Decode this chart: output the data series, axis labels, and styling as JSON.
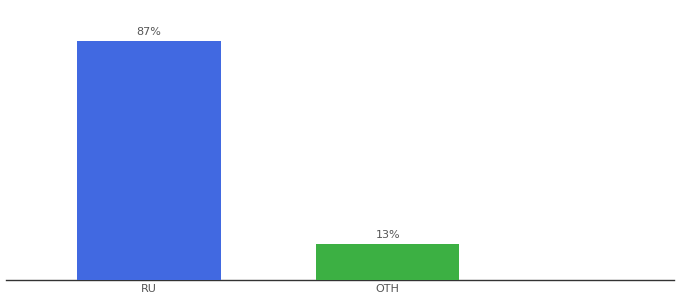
{
  "categories": [
    "RU",
    "OTH"
  ],
  "values": [
    87,
    13
  ],
  "bar_colors": [
    "#4169E1",
    "#3CB043"
  ],
  "labels": [
    "87%",
    "13%"
  ],
  "ylim": [
    0,
    100
  ],
  "background_color": "#ffffff",
  "label_fontsize": 8,
  "tick_fontsize": 8,
  "x_positions": [
    1,
    2
  ],
  "bar_width": 0.6,
  "xlim": [
    0.4,
    3.2
  ]
}
